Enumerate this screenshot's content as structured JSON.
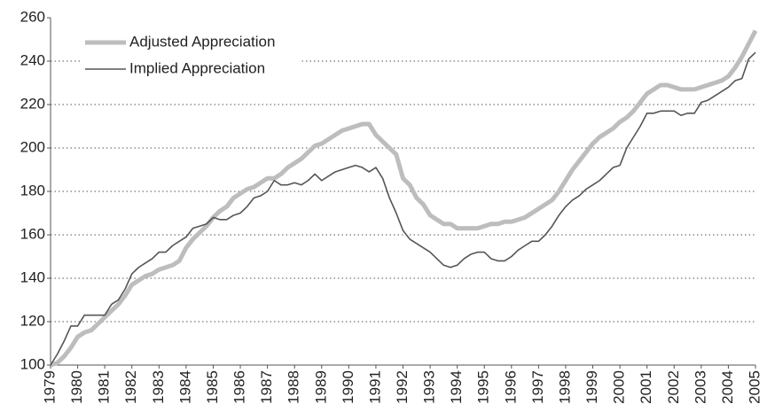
{
  "chart_data": {
    "type": "line",
    "x": [
      1979,
      1979.25,
      1979.5,
      1979.75,
      1980,
      1980.25,
      1980.5,
      1980.75,
      1981,
      1981.25,
      1981.5,
      1981.75,
      1982,
      1982.25,
      1982.5,
      1982.75,
      1983,
      1983.25,
      1983.5,
      1983.75,
      1984,
      1984.25,
      1984.5,
      1984.75,
      1985,
      1985.25,
      1985.5,
      1985.75,
      1986,
      1986.25,
      1986.5,
      1986.75,
      1987,
      1987.25,
      1987.5,
      1987.75,
      1988,
      1988.25,
      1988.5,
      1988.75,
      1989,
      1989.25,
      1989.5,
      1989.75,
      1990,
      1990.25,
      1990.5,
      1990.75,
      1991,
      1991.25,
      1991.5,
      1991.75,
      1992,
      1992.25,
      1992.5,
      1992.75,
      1993,
      1993.25,
      1993.5,
      1993.75,
      1994,
      1994.25,
      1994.5,
      1994.75,
      1995,
      1995.25,
      1995.5,
      1995.75,
      1996,
      1996.25,
      1996.5,
      1996.75,
      1997,
      1997.25,
      1997.5,
      1997.75,
      1998,
      1998.25,
      1998.5,
      1998.75,
      1999,
      1999.25,
      1999.5,
      1999.75,
      2000,
      2000.25,
      2000.5,
      2000.75,
      2001,
      2001.25,
      2001.5,
      2001.75,
      2002,
      2002.25,
      2002.5,
      2002.75,
      2003,
      2003.25,
      2003.5,
      2003.75,
      2004,
      2004.25,
      2004.5,
      2004.75,
      2005
    ],
    "series": [
      {
        "name": "Adjusted Appreciation",
        "color": "#bdbdbd",
        "values": [
          100,
          101,
          104,
          108,
          113,
          115,
          116,
          119,
          122,
          125,
          128,
          132,
          137,
          139,
          141,
          142,
          144,
          145,
          146,
          148,
          154,
          158,
          161,
          164,
          168,
          171,
          173,
          177,
          179,
          181,
          182,
          184,
          186,
          186,
          188,
          191,
          193,
          195,
          198,
          201,
          202,
          204,
          206,
          208,
          209,
          210,
          211,
          211,
          206,
          203,
          200,
          197,
          186,
          183,
          177,
          174,
          169,
          167,
          165,
          165,
          163,
          163,
          163,
          163,
          164,
          165,
          165,
          166,
          166,
          167,
          168,
          170,
          172,
          174,
          176,
          180,
          185,
          190,
          194,
          198,
          202,
          205,
          207,
          209,
          212,
          214,
          217,
          221,
          225,
          227,
          229,
          229,
          228,
          227,
          227,
          227,
          228,
          229,
          230,
          231,
          233,
          237,
          242,
          248,
          254
        ]
      },
      {
        "name": "Implied Appreciation",
        "color": "#555555",
        "values": [
          100,
          105,
          111,
          118,
          118,
          123,
          123,
          123,
          123,
          128,
          130,
          135,
          142,
          145,
          147,
          149,
          152,
          152,
          155,
          157,
          159,
          163,
          164,
          165,
          168,
          167,
          167,
          169,
          170,
          173,
          177,
          178,
          180,
          185,
          183,
          183,
          184,
          183,
          185,
          188,
          185,
          187,
          189,
          190,
          191,
          192,
          191,
          189,
          191,
          186,
          177,
          170,
          162,
          158,
          156,
          154,
          152,
          149,
          146,
          145,
          146,
          149,
          151,
          152,
          152,
          149,
          148,
          148,
          150,
          153,
          155,
          157,
          157,
          160,
          164,
          169,
          173,
          176,
          178,
          181,
          183,
          185,
          188,
          191,
          192,
          200,
          205,
          210,
          216,
          216,
          217,
          217,
          217,
          215,
          216,
          216,
          221,
          222,
          224,
          226,
          228,
          231,
          232,
          241,
          244
        ]
      }
    ],
    "xlim": [
      1979,
      2005
    ],
    "xticks": [
      1979,
      1980,
      1981,
      1982,
      1983,
      1984,
      1985,
      1986,
      1987,
      1988,
      1989,
      1990,
      1991,
      1992,
      1993,
      1994,
      1995,
      1996,
      1997,
      1998,
      1999,
      2000,
      2001,
      2002,
      2003,
      2004,
      2005
    ],
    "ylim": [
      100,
      260
    ],
    "yticks": [
      100,
      120,
      140,
      160,
      180,
      200,
      220,
      240,
      260
    ],
    "grid": true,
    "legend": "upper left"
  }
}
